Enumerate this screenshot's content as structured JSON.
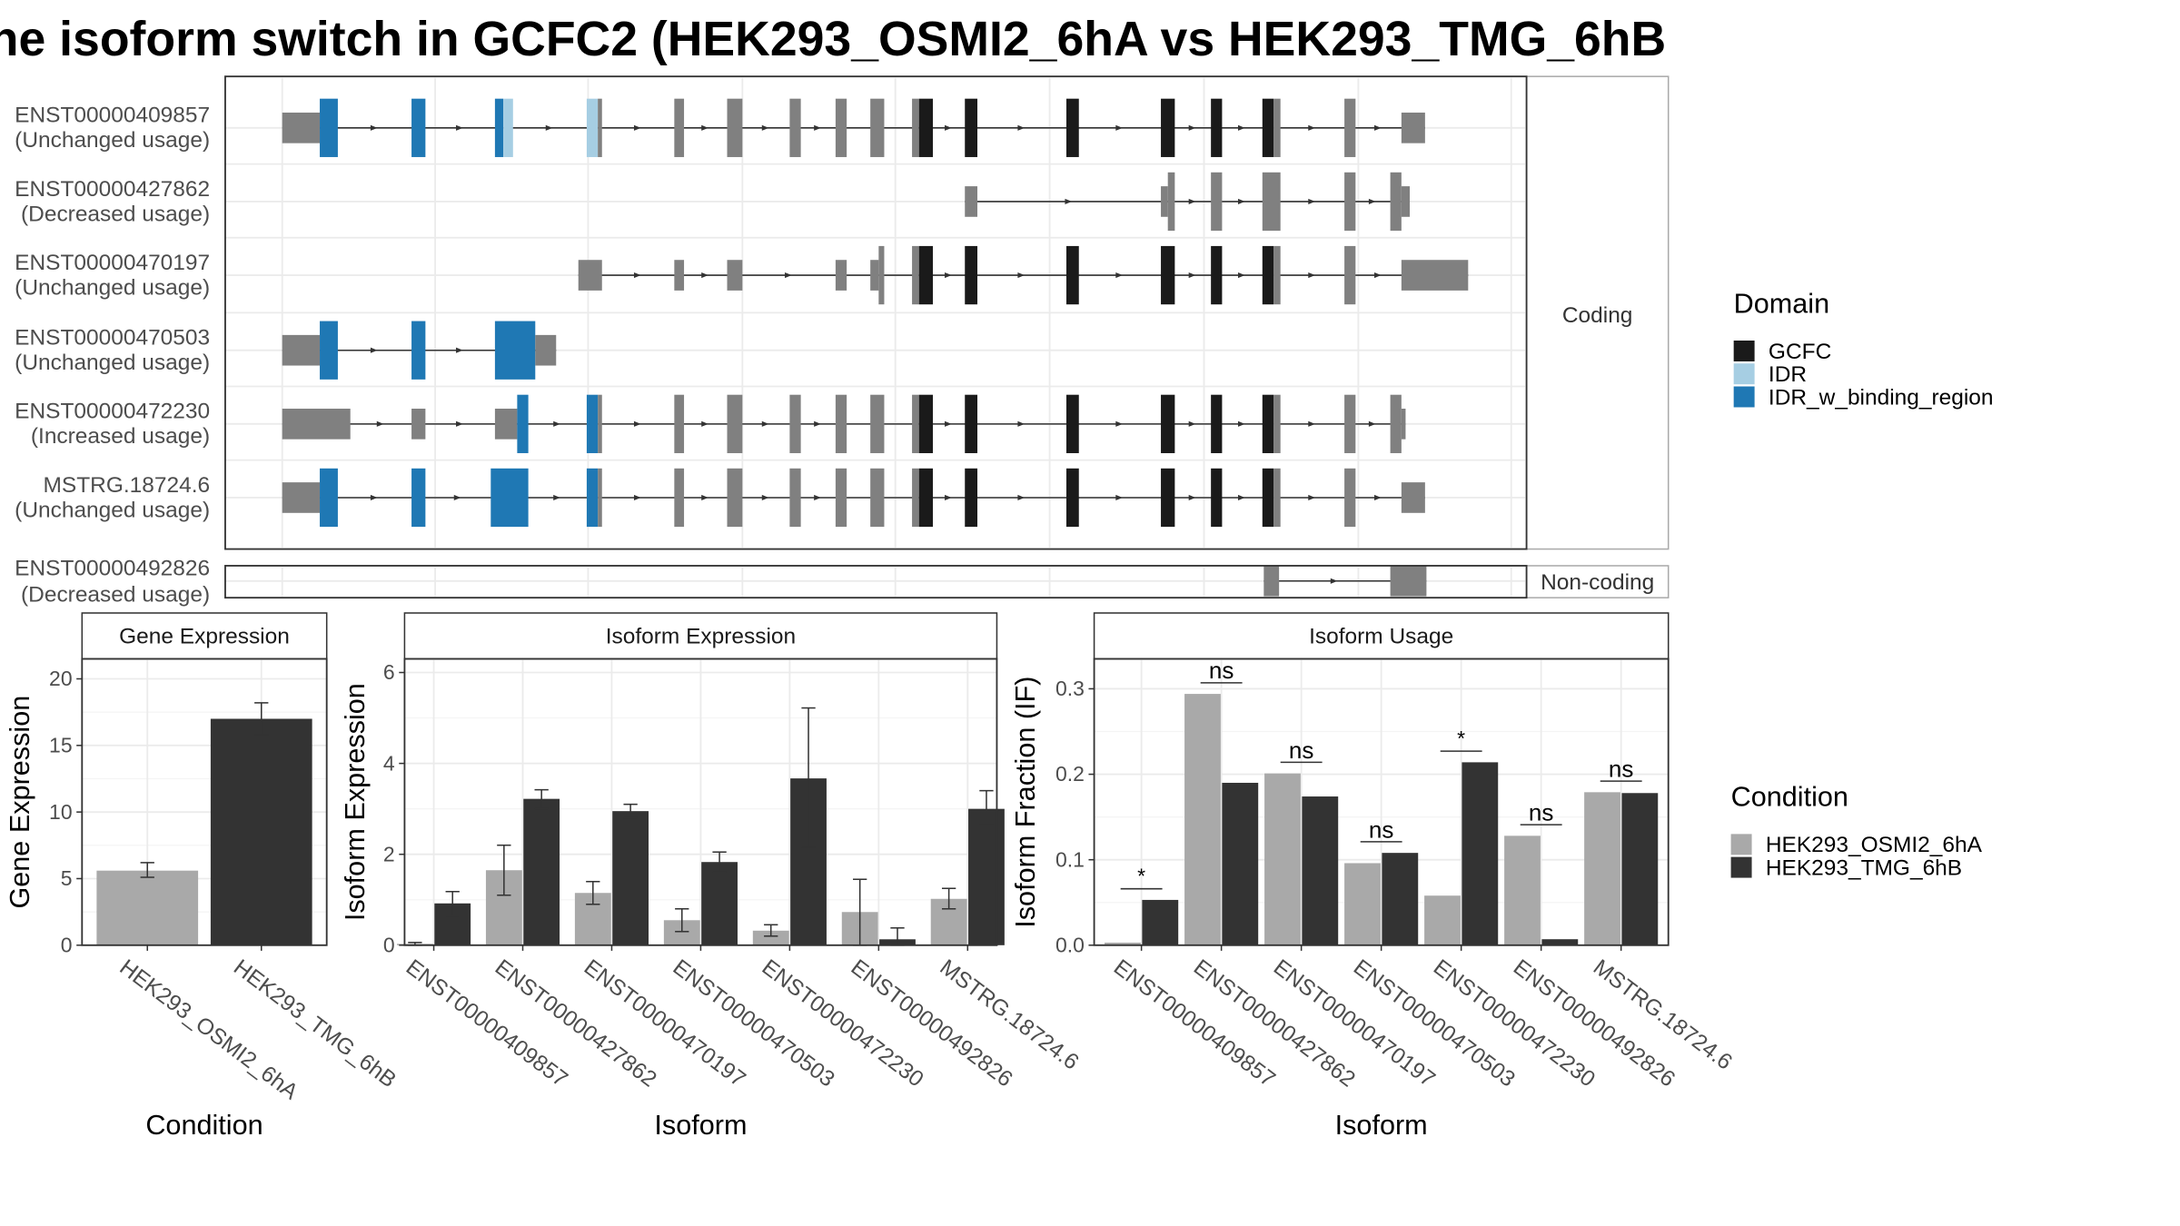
{
  "title": "he isoform switch in GCFC2 (HEK293_OSMI2_6hA vs HEK293_TMG_6hB",
  "structure": {
    "coding_strip": "Coding",
    "noncoding_strip": "Non-coding",
    "coding_transcripts": [
      {
        "id": "ENST00000409857",
        "status": "(Unchanged usage)"
      },
      {
        "id": "ENST00000427862",
        "status": "(Decreased usage)"
      },
      {
        "id": "ENST00000470197",
        "status": "(Unchanged usage)"
      },
      {
        "id": "ENST00000470503",
        "status": "(Unchanged usage)"
      },
      {
        "id": "ENST00000472230",
        "status": "(Increased usage)"
      },
      {
        "id": "MSTRG.18724.6",
        "status": "(Unchanged usage)"
      }
    ],
    "noncoding_transcripts": [
      {
        "id": "ENST00000492826",
        "status": "(Decreased usage)"
      }
    ]
  },
  "legend_domain": {
    "title": "Domain",
    "items": [
      {
        "label": "GCFC",
        "color": "#1a1a1a"
      },
      {
        "label": "IDR",
        "color": "#a6cee3"
      },
      {
        "label": "IDR_w_binding_region",
        "color": "#1f78b4"
      }
    ]
  },
  "legend_condition": {
    "title": "Condition",
    "items": [
      {
        "label": "HEK293_OSMI2_6hA",
        "color": "#a9a9a9"
      },
      {
        "label": "HEK293_TMG_6hB",
        "color": "#333333"
      }
    ]
  },
  "colors": {
    "exon": "#808080",
    "cond_a": "#a9a9a9",
    "cond_b": "#333333"
  },
  "chart_data": [
    {
      "type": "bar",
      "title": "Gene Expression",
      "xlabel": "Condition",
      "ylabel": "Gene Expression",
      "ylim": [
        0,
        21.5
      ],
      "yticks": [
        0,
        5,
        10,
        15,
        20
      ],
      "categories": [
        "HEK293_OSMI2_6hA",
        "HEK293_TMG_6hB"
      ],
      "values": [
        5.6,
        17.0
      ],
      "err_low": [
        5.1,
        15.8
      ],
      "err_high": [
        6.2,
        18.2
      ]
    },
    {
      "type": "bar",
      "title": "Isoform Expression",
      "xlabel": "Isoform",
      "ylabel": "Isoform Expression",
      "ylim": [
        0,
        6.3
      ],
      "yticks": [
        0,
        2,
        4,
        6
      ],
      "categories": [
        "ENST00000409857",
        "ENST00000427862",
        "ENST00000470197",
        "ENST00000470503",
        "ENST00000472230",
        "ENST00000492826",
        "MSTRG.18724.6"
      ],
      "series": [
        {
          "name": "HEK293_OSMI2_6hA",
          "values": [
            0.03,
            1.65,
            1.15,
            0.55,
            0.32,
            0.73,
            1.02
          ],
          "err_low": [
            0.0,
            1.1,
            0.9,
            0.3,
            0.2,
            0.0,
            0.8
          ],
          "err_high": [
            0.06,
            2.2,
            1.4,
            0.8,
            0.45,
            1.45,
            1.25
          ]
        },
        {
          "name": "HEK293_TMG_6hB",
          "values": [
            0.92,
            3.22,
            2.95,
            1.83,
            3.67,
            0.13,
            3.0
          ],
          "err_low": [
            0.65,
            3.0,
            2.8,
            1.6,
            2.15,
            0.0,
            2.65
          ],
          "err_high": [
            1.18,
            3.42,
            3.1,
            2.05,
            5.22,
            0.38,
            3.4
          ]
        }
      ]
    },
    {
      "type": "bar",
      "title": "Isoform Usage",
      "xlabel": "Isoform",
      "ylabel": "Isoform Fraction (IF)",
      "ylim": [
        0,
        0.335
      ],
      "yticks": [
        0.0,
        0.1,
        0.2,
        0.3
      ],
      "ytick_labels": [
        "0.0",
        "0.1",
        "0.2",
        "0.3"
      ],
      "categories": [
        "ENST00000409857",
        "ENST00000427862",
        "ENST00000470197",
        "ENST00000470503",
        "ENST00000472230",
        "ENST00000492826",
        "MSTRG.18724.6"
      ],
      "series": [
        {
          "name": "HEK293_OSMI2_6hA",
          "values": [
            0.003,
            0.294,
            0.201,
            0.096,
            0.058,
            0.128,
            0.179
          ]
        },
        {
          "name": "HEK293_TMG_6hB",
          "values": [
            0.053,
            0.19,
            0.174,
            0.108,
            0.214,
            0.007,
            0.178
          ]
        }
      ],
      "significance": [
        "*",
        "ns",
        "ns",
        "ns",
        "*",
        "ns",
        "ns"
      ]
    }
  ]
}
